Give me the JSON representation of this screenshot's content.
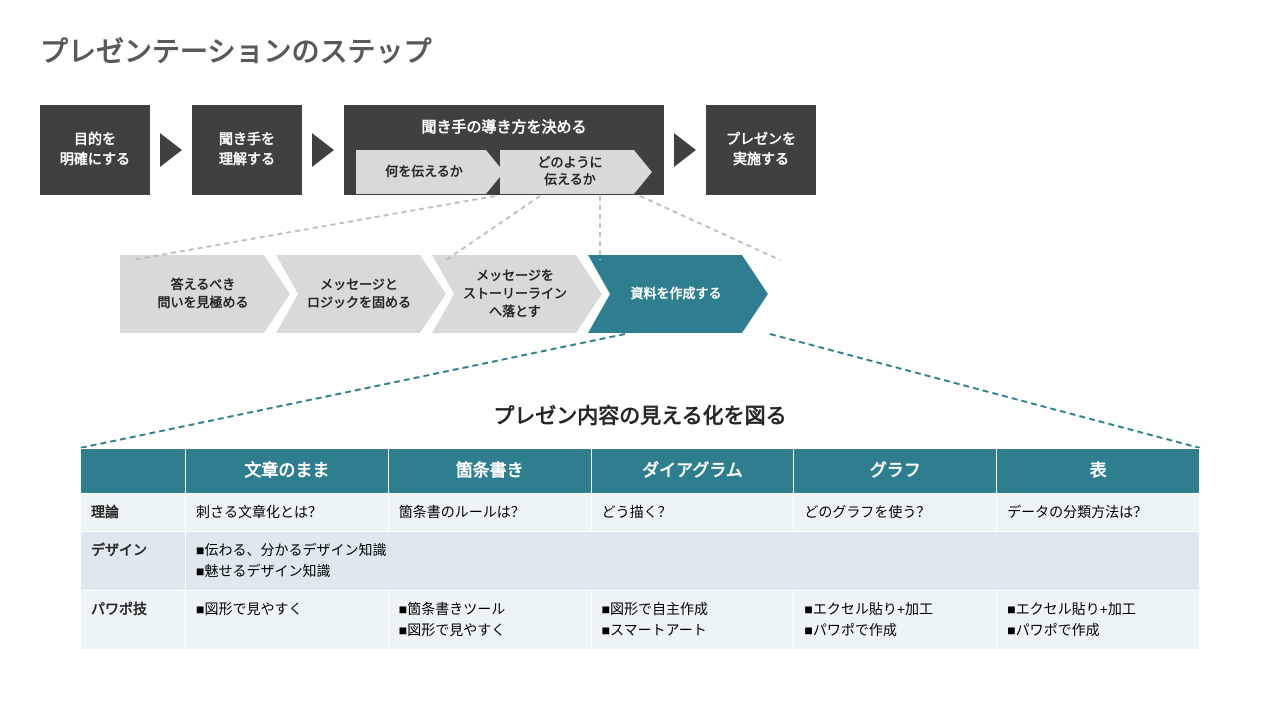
{
  "colors": {
    "dark": "#404040",
    "gray_box": "#d9d9d9",
    "accent": "#2f7e8f",
    "title_gray": "#595959",
    "table_row_light": "#ecf4f6",
    "table_row_dark": "#dde9ee",
    "connector": "#bfbfbf",
    "connector_accent": "#2f7e8f"
  },
  "title": "プレゼンテーションのステップ",
  "top_flow": {
    "step1": "目的を\n明確にする",
    "step2": "聞き手を\n理解する",
    "step3_parent": "聞き手の導き方を決める",
    "step3a": "何を伝えるか",
    "step3b": "どのように\n伝えるか",
    "step4": "プレゼンを\n実施する"
  },
  "mid_flow": {
    "a": "答えるべき\n問いを見極める",
    "b": "メッセージと\nロジックを固める",
    "c": "メッセージを\nストーリーライン\nへ落とす",
    "d": "資料を作成する"
  },
  "table_title": "プレゼン内容の見える化を図る",
  "table": {
    "columns": [
      "",
      "文章のまま",
      "箇条書き",
      "ダイアグラム",
      "グラフ",
      "表"
    ],
    "rows": [
      {
        "h": "理論",
        "cells": [
          "刺さる文章化とは？",
          "箇条書のルールは？",
          "どう描く？",
          "どのグラフを使う？",
          "データの分類方法は？"
        ]
      },
      {
        "h": "デザイン",
        "merged": "■伝わる、分かるデザイン知識\n■魅せるデザイン知識"
      },
      {
        "h": "パワポ技",
        "cells": [
          "■図形で見やすく",
          "■箇条書きツール\n■図形で見やすく",
          "■図形で自主作成\n■スマートアート",
          "■エクセル貼り+加工\n■パワポで作成",
          "■エクセル貼り+加工\n■パワポで作成"
        ]
      }
    ]
  }
}
